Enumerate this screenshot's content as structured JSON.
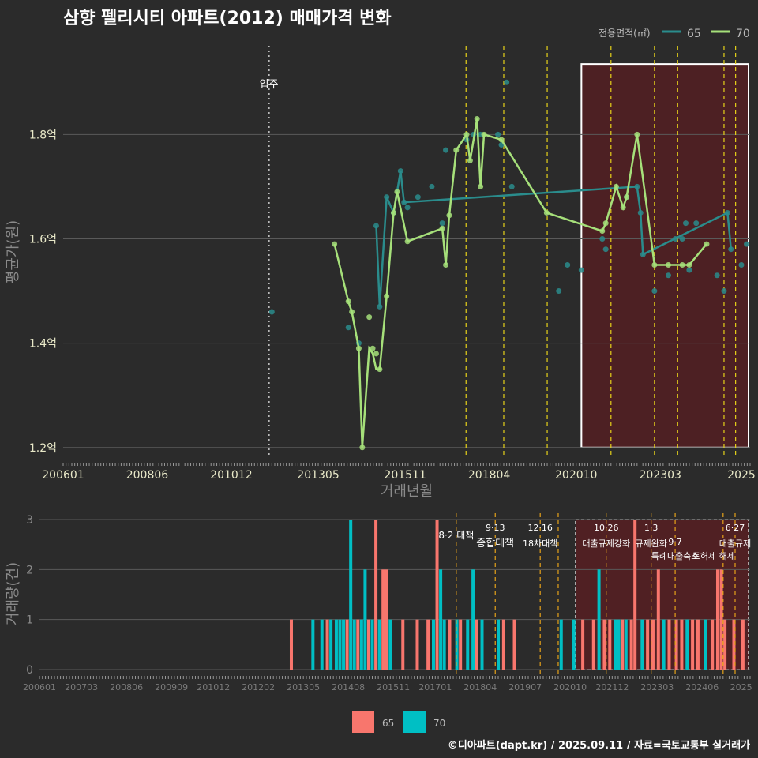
{
  "chart_data": {
    "type": "line",
    "title": "삼향 펠리시티 아파트(2012) 매매가격 변화",
    "legend_title": "전용면적(㎡)",
    "credit": "©디아파트(dapt.kr) / 2025.09.11 / 자료=국토교통부 실거래가",
    "xlabel": "거래년월",
    "ylabel": "평균가(원)",
    "ylim": [
      1.18,
      1.97
    ],
    "x_range": [
      2006.0,
      2025.75
    ],
    "x_ticks": [
      {
        "v": 2006.0,
        "label": "200601"
      },
      {
        "v": 2008.417,
        "label": "200806"
      },
      {
        "v": 2010.833,
        "label": "201012"
      },
      {
        "v": 2013.333,
        "label": "201305"
      },
      {
        "v": 2015.833,
        "label": "201511"
      },
      {
        "v": 2018.25,
        "label": "201804"
      },
      {
        "v": 2020.75,
        "label": "202010"
      },
      {
        "v": 2023.167,
        "label": "202303"
      },
      {
        "v": 2025.5,
        "label": "2025"
      }
    ],
    "y_ticks": [
      {
        "v": 1.2,
        "label": "1.2억"
      },
      {
        "v": 1.4,
        "label": "1.4억"
      },
      {
        "v": 1.6,
        "label": "1.6억"
      },
      {
        "v": 1.8,
        "label": "1.8억"
      }
    ],
    "move_in": {
      "x": 2011.917,
      "label": "입주"
    },
    "policy_lines": [
      2017.583,
      2018.667,
      2019.917,
      2021.75,
      2023.0,
      2023.667,
      2025.0,
      2025.333
    ],
    "highlight": {
      "x0": 2020.9,
      "x1": 2025.75,
      "y0": 1.2,
      "y1": 1.935
    },
    "series": [
      {
        "name": "65",
        "color": "#2a8c8c",
        "points": [
          [
            2012.0,
            1.46
          ],
          [
            2014.2,
            1.43
          ],
          [
            2014.5,
            1.4
          ],
          [
            2015.0,
            1.625
          ],
          [
            2015.1,
            1.47
          ],
          [
            2015.3,
            1.68
          ],
          [
            2015.5,
            1.65
          ],
          [
            2015.7,
            1.73
          ],
          [
            2015.8,
            1.67
          ],
          [
            2015.9,
            1.66
          ],
          [
            2016.2,
            1.68
          ],
          [
            2016.6,
            1.7
          ],
          [
            2016.9,
            1.63
          ],
          [
            2017.0,
            1.77
          ],
          [
            2017.6,
            1.79
          ],
          [
            2017.8,
            1.8
          ],
          [
            2018.0,
            1.8
          ],
          [
            2018.5,
            1.8
          ],
          [
            2018.6,
            1.78
          ],
          [
            2018.75,
            1.9
          ],
          [
            2018.9,
            1.7
          ],
          [
            2020.25,
            1.5
          ],
          [
            2020.5,
            1.55
          ],
          [
            2020.9,
            1.54
          ],
          [
            2021.5,
            1.6
          ],
          [
            2021.6,
            1.58
          ],
          [
            2022.2,
            1.68
          ],
          [
            2022.5,
            1.7
          ],
          [
            2022.6,
            1.65
          ],
          [
            2022.67,
            1.57
          ],
          [
            2023.0,
            1.5
          ],
          [
            2023.4,
            1.53
          ],
          [
            2023.6,
            1.6
          ],
          [
            2023.8,
            1.6
          ],
          [
            2023.9,
            1.63
          ],
          [
            2024.0,
            1.54
          ],
          [
            2024.2,
            1.63
          ],
          [
            2024.8,
            1.53
          ],
          [
            2025.0,
            1.5
          ],
          [
            2025.1,
            1.65
          ],
          [
            2025.2,
            1.58
          ],
          [
            2025.5,
            1.55
          ],
          [
            2025.65,
            1.59
          ]
        ],
        "line": [
          [
            2015.0,
            1.625
          ],
          [
            2015.1,
            1.47
          ],
          [
            2015.3,
            1.68
          ],
          [
            2015.5,
            1.65
          ],
          [
            2015.7,
            1.73
          ],
          [
            2015.8,
            1.67
          ],
          [
            2022.5,
            1.7
          ],
          [
            2022.6,
            1.65
          ],
          [
            2022.67,
            1.57
          ],
          [
            2025.1,
            1.65
          ],
          [
            2025.2,
            1.58
          ]
        ]
      },
      {
        "name": "70",
        "color": "#a6e07a",
        "points": [
          [
            2013.8,
            1.59
          ],
          [
            2014.2,
            1.48
          ],
          [
            2014.3,
            1.46
          ],
          [
            2014.5,
            1.39
          ],
          [
            2014.6,
            1.2
          ],
          [
            2014.8,
            1.45
          ],
          [
            2014.9,
            1.39
          ],
          [
            2015.0,
            1.38
          ],
          [
            2015.1,
            1.35
          ],
          [
            2015.3,
            1.49
          ],
          [
            2015.5,
            1.65
          ],
          [
            2015.6,
            1.69
          ],
          [
            2015.9,
            1.595
          ],
          [
            2016.9,
            1.62
          ],
          [
            2017.0,
            1.55
          ],
          [
            2017.1,
            1.645
          ],
          [
            2017.3,
            1.77
          ],
          [
            2017.6,
            1.8
          ],
          [
            2017.7,
            1.75
          ],
          [
            2017.9,
            1.83
          ],
          [
            2018.0,
            1.7
          ],
          [
            2018.1,
            1.8
          ],
          [
            2018.6,
            1.79
          ],
          [
            2019.9,
            1.65
          ],
          [
            2021.5,
            1.615
          ],
          [
            2021.6,
            1.63
          ],
          [
            2021.9,
            1.7
          ],
          [
            2022.1,
            1.66
          ],
          [
            2022.2,
            1.68
          ],
          [
            2022.5,
            1.8
          ],
          [
            2023.0,
            1.55
          ],
          [
            2023.4,
            1.55
          ],
          [
            2023.8,
            1.55
          ],
          [
            2024.0,
            1.55
          ],
          [
            2024.5,
            1.59
          ]
        ],
        "line": [
          [
            2013.8,
            1.59
          ],
          [
            2014.2,
            1.48
          ],
          [
            2014.3,
            1.46
          ],
          [
            2014.5,
            1.39
          ],
          [
            2014.6,
            1.2
          ],
          [
            2014.8,
            1.39
          ],
          [
            2014.9,
            1.38
          ],
          [
            2015.0,
            1.35
          ],
          [
            2015.1,
            1.35
          ],
          [
            2015.3,
            1.49
          ],
          [
            2015.5,
            1.65
          ],
          [
            2015.6,
            1.69
          ],
          [
            2015.9,
            1.595
          ],
          [
            2016.9,
            1.62
          ],
          [
            2017.0,
            1.55
          ],
          [
            2017.1,
            1.645
          ],
          [
            2017.3,
            1.77
          ],
          [
            2017.6,
            1.8
          ],
          [
            2017.7,
            1.75
          ],
          [
            2017.9,
            1.83
          ],
          [
            2018.0,
            1.7
          ],
          [
            2018.1,
            1.8
          ],
          [
            2018.6,
            1.79
          ],
          [
            2019.9,
            1.65
          ],
          [
            2021.5,
            1.615
          ],
          [
            2021.6,
            1.63
          ],
          [
            2021.9,
            1.7
          ],
          [
            2022.1,
            1.66
          ],
          [
            2022.2,
            1.68
          ],
          [
            2022.5,
            1.8
          ],
          [
            2023.0,
            1.55
          ],
          [
            2023.4,
            1.55
          ],
          [
            2023.8,
            1.55
          ],
          [
            2024.0,
            1.55
          ],
          [
            2024.5,
            1.59
          ]
        ]
      }
    ],
    "volume": {
      "ylabel": "거래량(건)",
      "ylim": [
        0,
        3
      ],
      "y_ticks": [
        0,
        1,
        2,
        3
      ],
      "x_ticks": [
        {
          "v": 2006.0,
          "label": "200601"
        },
        {
          "v": 2007.167,
          "label": "200703"
        },
        {
          "v": 2008.417,
          "label": "200806"
        },
        {
          "v": 2009.667,
          "label": "200909"
        },
        {
          "v": 2010.833,
          "label": "201012"
        },
        {
          "v": 2012.083,
          "label": "201202"
        },
        {
          "v": 2013.333,
          "label": "201305"
        },
        {
          "v": 2014.583,
          "label": "201408"
        },
        {
          "v": 2015.833,
          "label": "201511"
        },
        {
          "v": 2017.0,
          "label": "201701"
        },
        {
          "v": 2018.25,
          "label": "201804"
        },
        {
          "v": 2019.5,
          "label": "201907"
        },
        {
          "v": 2020.75,
          "label": "202010"
        },
        {
          "v": 2021.917,
          "label": "202112"
        },
        {
          "v": 2023.167,
          "label": "202303"
        },
        {
          "v": 2024.417,
          "label": "202406"
        },
        {
          "v": 2025.5,
          "label": "2025"
        }
      ],
      "legend": [
        "65",
        "70"
      ],
      "colors": {
        "65": "#f8766d",
        "70": "#00bfc4"
      },
      "bars": [
        [
          2013.0,
          "65",
          1
        ],
        [
          2013.6,
          "70",
          1
        ],
        [
          2013.85,
          "70",
          1
        ],
        [
          2014.0,
          "65",
          1
        ],
        [
          2014.1,
          "70",
          1
        ],
        [
          2014.25,
          "70",
          1
        ],
        [
          2014.35,
          "70",
          1
        ],
        [
          2014.45,
          "70",
          1
        ],
        [
          2014.55,
          "65",
          1
        ],
        [
          2014.65,
          "70",
          3
        ],
        [
          2014.75,
          "70",
          1
        ],
        [
          2014.85,
          "65",
          1
        ],
        [
          2014.95,
          "70",
          1
        ],
        [
          2015.05,
          "70",
          2
        ],
        [
          2015.15,
          "65",
          1
        ],
        [
          2015.25,
          "70",
          1
        ],
        [
          2015.35,
          "65",
          3
        ],
        [
          2015.45,
          "70",
          1
        ],
        [
          2015.55,
          "65",
          2
        ],
        [
          2015.65,
          "65",
          2
        ],
        [
          2015.75,
          "70",
          1
        ],
        [
          2016.1,
          "65",
          1
        ],
        [
          2016.5,
          "65",
          1
        ],
        [
          2016.8,
          "65",
          1
        ],
        [
          2016.95,
          "70",
          1
        ],
        [
          2017.05,
          "65",
          3
        ],
        [
          2017.15,
          "70",
          2
        ],
        [
          2017.25,
          "70",
          1
        ],
        [
          2017.4,
          "65",
          1
        ],
        [
          2017.6,
          "70",
          1
        ],
        [
          2017.7,
          "65",
          1
        ],
        [
          2017.9,
          "70",
          1
        ],
        [
          2018.05,
          "70",
          2
        ],
        [
          2018.15,
          "65",
          1
        ],
        [
          2018.3,
          "70",
          1
        ],
        [
          2018.75,
          "70",
          1
        ],
        [
          2018.9,
          "65",
          1
        ],
        [
          2019.2,
          "65",
          1
        ],
        [
          2020.5,
          "70",
          1
        ],
        [
          2020.85,
          "70",
          1
        ],
        [
          2021.1,
          "65",
          1
        ],
        [
          2021.4,
          "65",
          1
        ],
        [
          2021.55,
          "70",
          2
        ],
        [
          2021.7,
          "65",
          1
        ],
        [
          2021.85,
          "65",
          1
        ],
        [
          2022.0,
          "70",
          1
        ],
        [
          2022.1,
          "70",
          1
        ],
        [
          2022.2,
          "65",
          1
        ],
        [
          2022.3,
          "70",
          1
        ],
        [
          2022.45,
          "65",
          1
        ],
        [
          2022.55,
          "65",
          3
        ],
        [
          2022.75,
          "70",
          1
        ],
        [
          2022.9,
          "65",
          1
        ],
        [
          2023.05,
          "65",
          1
        ],
        [
          2023.2,
          "65",
          2
        ],
        [
          2023.35,
          "70",
          1
        ],
        [
          2023.5,
          "65",
          1
        ],
        [
          2023.7,
          "65",
          1
        ],
        [
          2023.85,
          "65",
          1
        ],
        [
          2024.0,
          "70",
          1
        ],
        [
          2024.15,
          "65",
          1
        ],
        [
          2024.3,
          "65",
          1
        ],
        [
          2024.5,
          "70",
          1
        ],
        [
          2024.7,
          "65",
          1
        ],
        [
          2024.85,
          "65",
          2
        ],
        [
          2024.95,
          "65",
          2
        ],
        [
          2025.05,
          "65",
          1
        ],
        [
          2025.3,
          "65",
          1
        ],
        [
          2025.55,
          "65",
          1
        ]
      ],
      "highlight": {
        "x0": 2020.9,
        "x1": 2025.75
      },
      "policies": [
        {
          "x": 2017.583,
          "date": "8·2",
          "name": "대책"
        },
        {
          "x": 2018.667,
          "date": "9·13",
          "name": "종합대책"
        },
        {
          "x": 2019.917,
          "date": "12·16",
          "name": "18차대책"
        },
        {
          "x": 2020.417,
          "date": "",
          "name": ""
        },
        {
          "x": 2021.75,
          "date": "10·26",
          "name": "대출규제강화"
        },
        {
          "x": 2023.0,
          "date": "1·3",
          "name": "규제완화"
        },
        {
          "x": 2023.667,
          "date": "9·7",
          "name": "특례대출축소"
        },
        {
          "x": 2025.0,
          "date": "",
          "name": "토허제 해제"
        },
        {
          "x": 2025.333,
          "date": "6·27",
          "name": "대출규제"
        }
      ]
    }
  }
}
